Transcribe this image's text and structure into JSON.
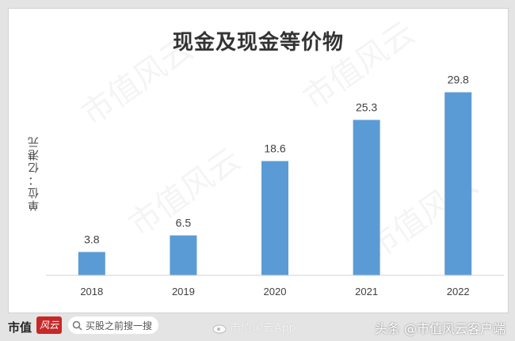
{
  "chart_data": {
    "type": "bar",
    "title": "现金及现金等价物",
    "ylabel": "单位：亿港元",
    "categories": [
      "2018",
      "2019",
      "2020",
      "2021",
      "2022"
    ],
    "values": [
      3.8,
      6.5,
      18.6,
      25.3,
      29.8
    ],
    "value_labels": [
      "3.8",
      "6.5",
      "18.6",
      "25.3",
      "29.8"
    ],
    "ylim": [
      0,
      34
    ],
    "bar_color": "#5b9bd5",
    "grid": false,
    "legend": "none"
  },
  "watermark": "市值风云",
  "footer": {
    "logo_text": "市值",
    "logo_badge": "风云",
    "search_text": "买股之前搜一搜",
    "weibo_text": "市值风云App",
    "toutiao_text": "头条 @市值风云客户端"
  },
  "colors": {
    "background": "#e4e4e4",
    "card": "#ffffff",
    "bar": "#5b9bd5",
    "brand_red": "#c62828"
  }
}
